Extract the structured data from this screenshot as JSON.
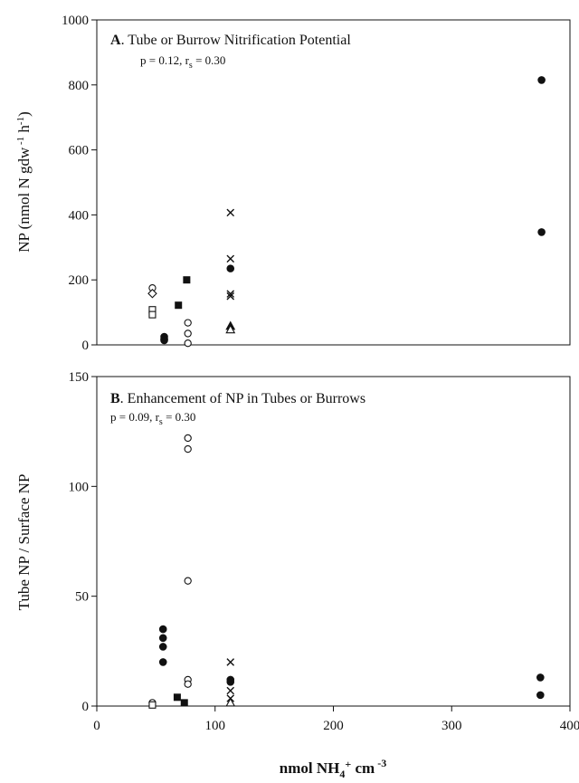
{
  "chart_data": [
    {
      "type": "scatter",
      "panel_letter": "A",
      "title": ". Tube or Burrow Nitrification Potential",
      "stats": {
        "p": "p = 0.12, r",
        "sub": "s",
        "rest": " = 0.30"
      },
      "ylabel": {
        "pre": "NP (nmol N gdw",
        "sup1": " -1",
        "mid": " h",
        "sup2": "-1",
        "post": ")"
      },
      "xlim": [
        0,
        400
      ],
      "ylim": [
        0,
        1000
      ],
      "yticks": [
        0,
        200,
        400,
        600,
        800,
        1000
      ],
      "series": [
        {
          "marker": "open-circle",
          "points": [
            [
              47,
              175
            ],
            [
              77,
              68
            ],
            [
              77,
              35
            ],
            [
              77,
              5
            ]
          ]
        },
        {
          "marker": "filled-circle",
          "points": [
            [
              57,
              25
            ],
            [
              57,
              18
            ],
            [
              57,
              14
            ],
            [
              113,
              235
            ],
            [
              376,
              815
            ],
            [
              376,
              347
            ]
          ]
        },
        {
          "marker": "filled-square",
          "points": [
            [
              69,
              122
            ],
            [
              76,
              200
            ]
          ]
        },
        {
          "marker": "open-square",
          "points": [
            [
              47,
              108
            ],
            [
              47,
              93
            ]
          ]
        },
        {
          "marker": "open-diamond",
          "points": [
            [
              47,
              158
            ]
          ]
        },
        {
          "marker": "x",
          "points": [
            [
              113,
              407
            ],
            [
              113,
              265
            ],
            [
              113,
              157
            ],
            [
              113,
              150
            ]
          ]
        },
        {
          "marker": "filled-triangle",
          "points": [
            [
              113,
              58
            ]
          ]
        },
        {
          "marker": "open-triangle",
          "points": [
            [
              113,
              47
            ]
          ]
        }
      ]
    },
    {
      "type": "scatter",
      "panel_letter": "B",
      "title": ".  Enhancement of NP in Tubes or Burrows",
      "stats": {
        "p": "p = 0.09, r",
        "sub": "s",
        "rest": " = 0.30"
      },
      "ylabel": "Tube NP / Surface NP",
      "xlabel": {
        "pre": "nmol NH",
        "sub": "4",
        "sup": "+",
        "post": "   cm",
        "sup2": " -3"
      },
      "xlim": [
        0,
        400
      ],
      "ylim": [
        0,
        150
      ],
      "xticks": [
        0,
        100,
        200,
        300,
        400
      ],
      "yticks": [
        0,
        50,
        100,
        150
      ],
      "series": [
        {
          "marker": "open-circle",
          "points": [
            [
              47,
              1.5
            ],
            [
              77,
              122
            ],
            [
              77,
              117
            ],
            [
              77,
              57
            ],
            [
              77,
              12
            ],
            [
              77,
              10
            ]
          ]
        },
        {
          "marker": "filled-circle",
          "points": [
            [
              56,
              35
            ],
            [
              56,
              31
            ],
            [
              56,
              27
            ],
            [
              56,
              20
            ],
            [
              113,
              12
            ],
            [
              113,
              11
            ],
            [
              375,
              13
            ],
            [
              375,
              5
            ]
          ]
        },
        {
          "marker": "filled-square",
          "points": [
            [
              68,
              4
            ],
            [
              74,
              1.5
            ]
          ]
        },
        {
          "marker": "open-square",
          "points": [
            [
              47,
              0.5
            ]
          ]
        },
        {
          "marker": "x",
          "points": [
            [
              113,
              20
            ],
            [
              113,
              7
            ],
            [
              113,
              3.5
            ]
          ]
        },
        {
          "marker": "open-triangle",
          "points": [
            [
              113,
              1.5
            ]
          ]
        }
      ]
    }
  ]
}
